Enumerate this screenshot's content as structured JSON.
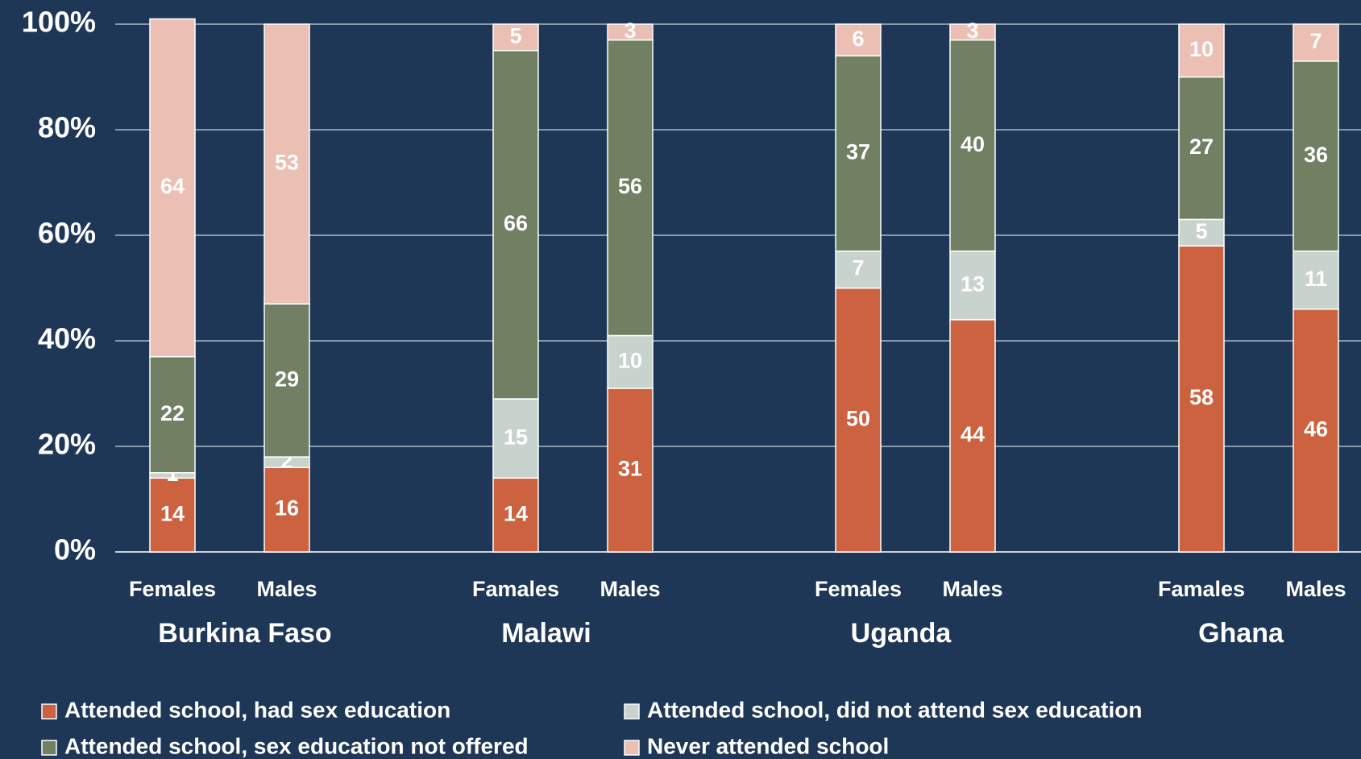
{
  "chart_data": {
    "type": "stacked_bar",
    "categories": [
      "Females",
      "Males",
      "Famales",
      "Males",
      "Females",
      "Males",
      "Famales",
      "Males"
    ],
    "groups": [
      "Burkina Faso",
      "Malawi",
      "Uganda",
      "Ghana"
    ],
    "series": [
      {
        "name": "Attended school, had sex education",
        "color": "#cc6240",
        "values": [
          14,
          16,
          14,
          31,
          50,
          44,
          58,
          46
        ]
      },
      {
        "name": "Attended school, did not attend sex education",
        "color": "#c9d3ce",
        "values": [
          1,
          2,
          15,
          10,
          7,
          13,
          5,
          11
        ]
      },
      {
        "name": "Attended school, sex education not offered",
        "color": "#717f62",
        "values": [
          22,
          29,
          66,
          56,
          37,
          40,
          27,
          36
        ]
      },
      {
        "name": "Never attended school",
        "color": "#ebbfb3",
        "values": [
          64,
          53,
          5,
          3,
          6,
          3,
          10,
          7
        ]
      }
    ],
    "ylim": [
      0,
      100
    ],
    "yticks": [
      {
        "value": 0,
        "label": "0%"
      },
      {
        "value": 20,
        "label": "20%"
      },
      {
        "value": 40,
        "label": "40%"
      },
      {
        "value": 60,
        "label": "60%"
      },
      {
        "value": 80,
        "label": "80%"
      },
      {
        "value": 100,
        "label": "100%"
      }
    ],
    "grid": true,
    "legend": "bottom"
  }
}
